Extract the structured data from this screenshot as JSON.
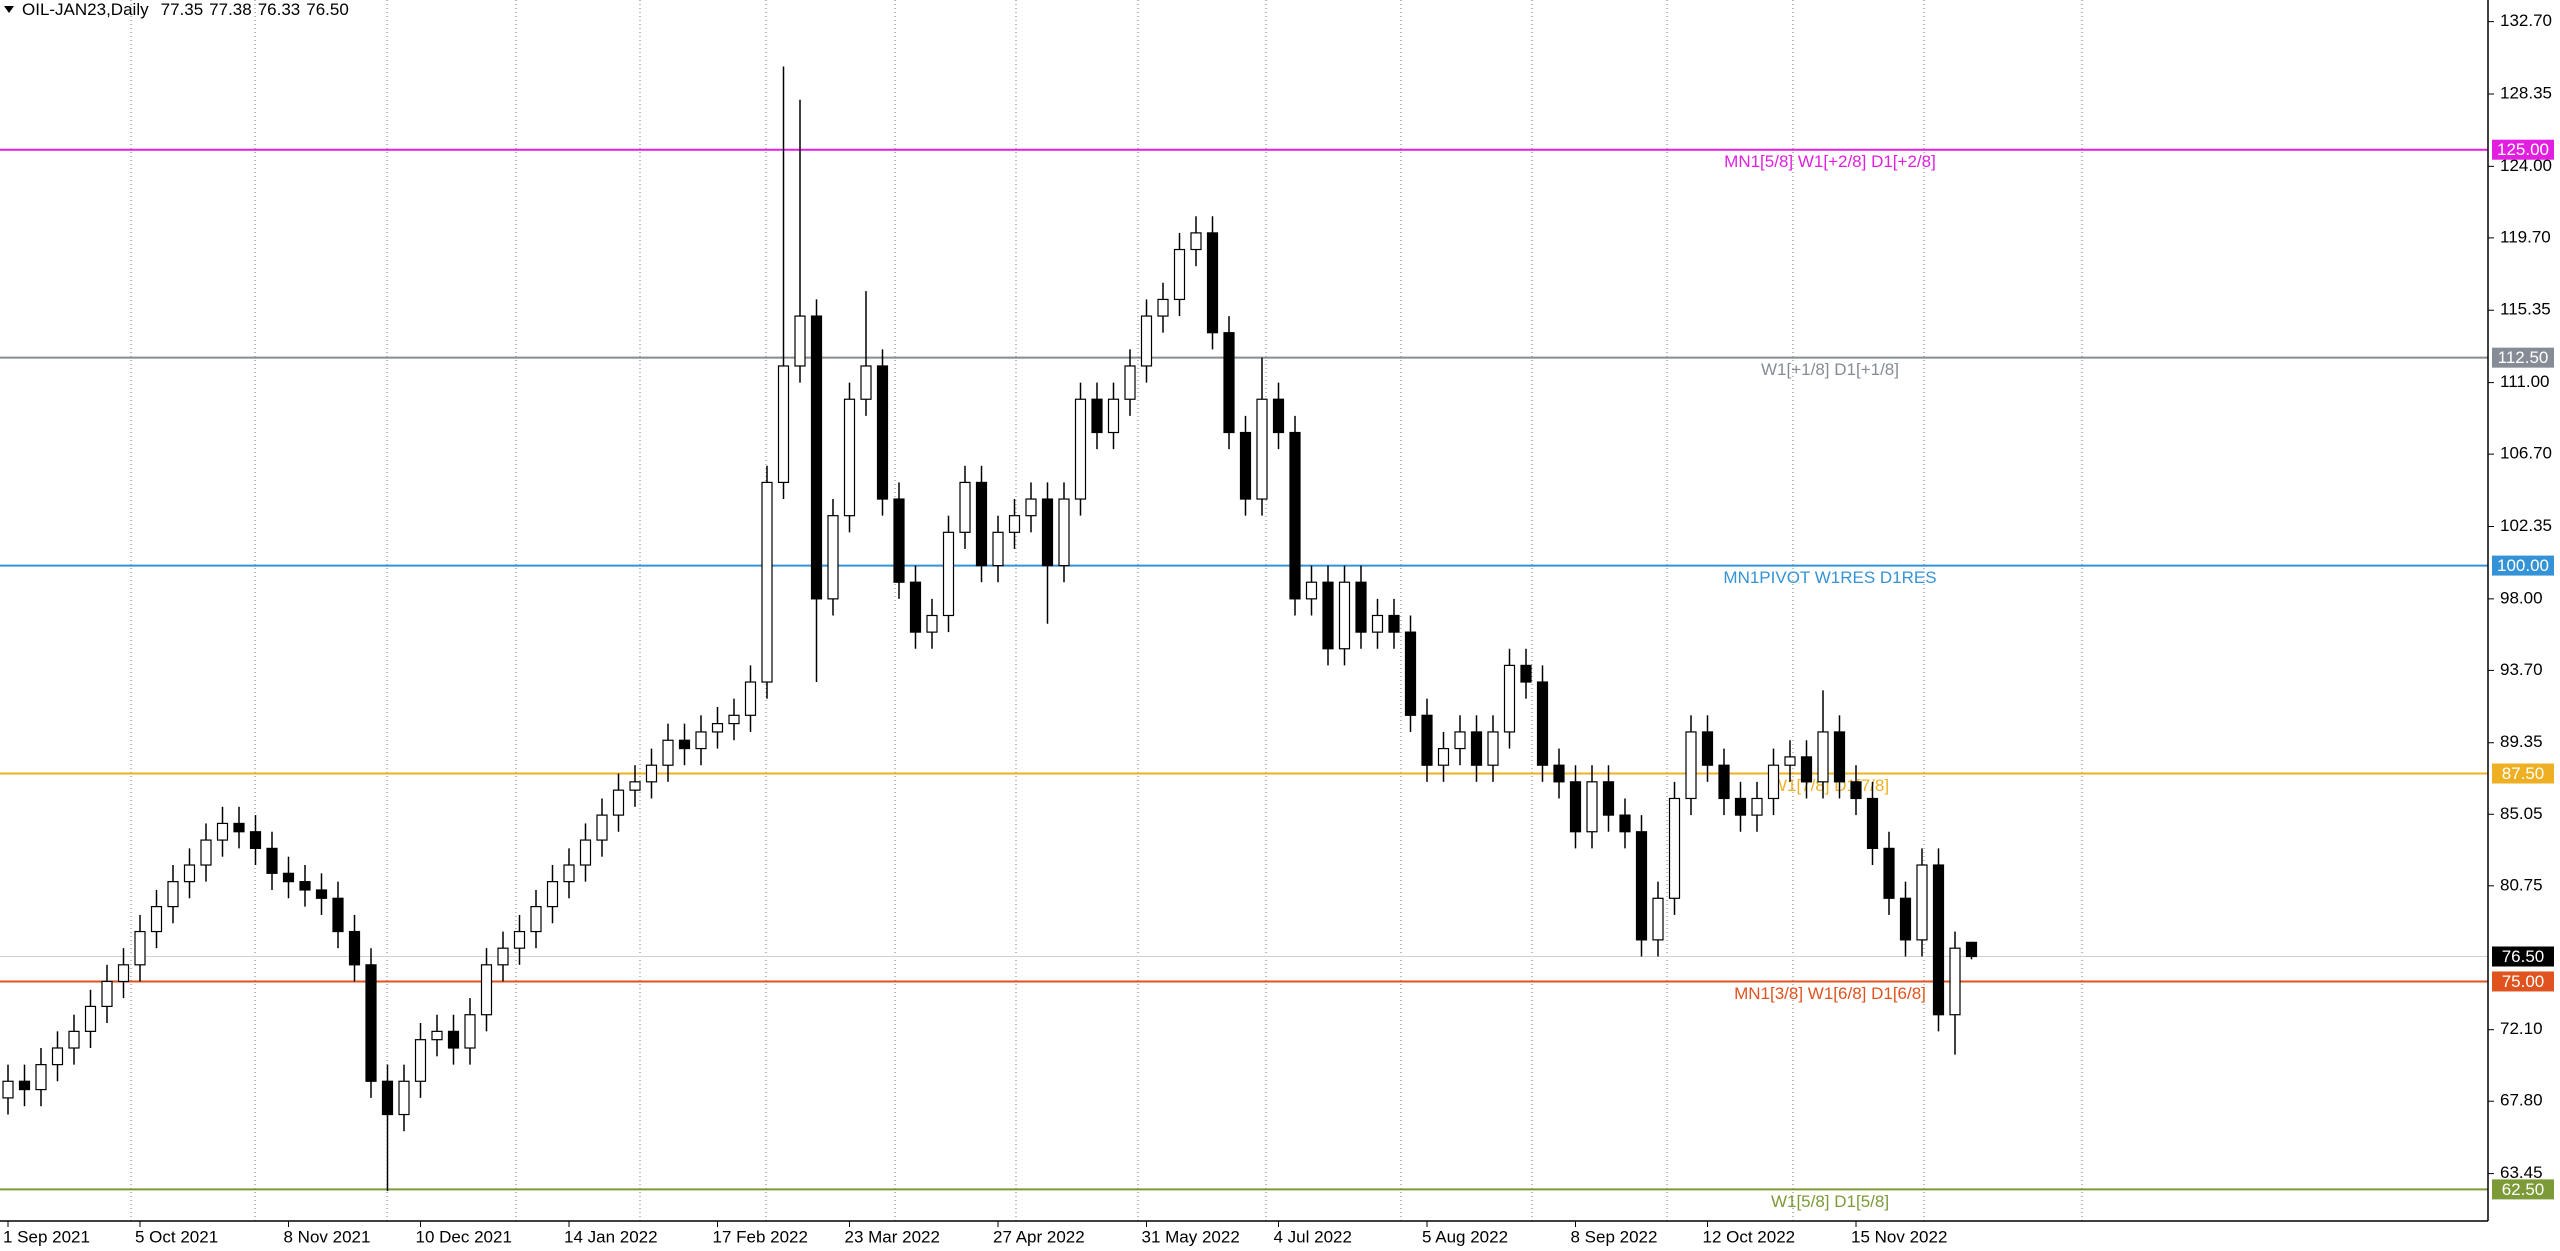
{
  "chart_data": {
    "type": "candlestick",
    "title": "OIL-JAN23,Daily",
    "last_ohlc": [
      77.35,
      77.38,
      76.33,
      {
        "value": 76.5,
        "label": "76.50"
      }
    ],
    "up_color": "#ffffff",
    "down_color": "#000000",
    "outline": "#000000",
    "categories": [
      "1 Sep 2021",
      null,
      null,
      null,
      null,
      null,
      null,
      null,
      "5 Oct 2021",
      null,
      null,
      null,
      null,
      null,
      null,
      null,
      null,
      "8 Nov 2021",
      null,
      null,
      null,
      null,
      null,
      null,
      null,
      "10 Dec 2021",
      null,
      null,
      null,
      null,
      null,
      null,
      null,
      null,
      "14 Jan 2022",
      null,
      null,
      null,
      null,
      null,
      null,
      null,
      null,
      "17 Feb 2022",
      null,
      null,
      null,
      null,
      null,
      null,
      null,
      "23 Mar 2022",
      null,
      null,
      null,
      null,
      null,
      null,
      null,
      null,
      "27 Apr 2022",
      null,
      null,
      null,
      null,
      null,
      null,
      null,
      null,
      "31 May 2022",
      null,
      null,
      null,
      null,
      null,
      null,
      null,
      "4 Jul 2022",
      null,
      null,
      null,
      null,
      null,
      null,
      null,
      null,
      "5 Aug 2022",
      null,
      null,
      null,
      null,
      null,
      null,
      null,
      null,
      "8 Sep 2022",
      null,
      null,
      null,
      null,
      null,
      null,
      null,
      "12 Oct 2022",
      null,
      null,
      null,
      null,
      null,
      null,
      null,
      null,
      "15 Nov 2022",
      null,
      null,
      null,
      null,
      null,
      null,
      null
    ],
    "open": [
      68,
      69,
      68.5,
      70,
      71,
      72,
      73.5,
      75,
      76,
      78,
      79.5,
      81,
      82,
      83.5,
      84.5,
      84,
      83,
      81.5,
      81,
      80.5,
      80,
      78,
      76,
      69,
      67,
      69,
      71.5,
      72,
      71,
      73,
      76,
      77,
      78,
      79.5,
      81,
      82,
      83.5,
      85,
      86.5,
      87,
      88,
      89.5,
      89,
      90,
      90.5,
      91,
      93,
      105,
      112,
      115,
      98,
      103,
      110,
      112,
      104,
      99,
      96,
      97,
      102,
      105,
      100,
      102,
      103,
      104,
      100,
      104,
      110,
      108,
      110,
      112,
      115,
      116,
      119,
      120,
      114,
      108,
      104,
      110,
      108,
      98,
      99,
      95,
      99,
      96,
      97,
      96,
      91,
      88,
      89,
      90,
      88,
      90,
      94,
      93,
      88,
      87,
      84,
      87,
      85,
      84,
      77.5,
      80,
      86,
      90,
      88,
      86,
      85,
      86,
      88,
      88.5,
      87,
      90,
      87,
      86,
      83,
      80,
      77.5,
      82,
      73,
      77.35
    ],
    "high": [
      70,
      70,
      71,
      72,
      73,
      74.5,
      76,
      77,
      79,
      80.5,
      82,
      83,
      84.5,
      85.5,
      85.5,
      85,
      84,
      82.5,
      82,
      81.5,
      81,
      79,
      77,
      70,
      70,
      72.5,
      73,
      73,
      74,
      77,
      78,
      79,
      80.5,
      82,
      83,
      84.5,
      86,
      87.5,
      88,
      89,
      90.5,
      90.5,
      91,
      91.5,
      92,
      94,
      106,
      130,
      128,
      116,
      104,
      111,
      116.5,
      113,
      105,
      100,
      98,
      103,
      106,
      106,
      103,
      104,
      105,
      105,
      105,
      111,
      111,
      111,
      113,
      116,
      117,
      120,
      121,
      121,
      115,
      109,
      112.5,
      111,
      109,
      100,
      100,
      100,
      100,
      98,
      98,
      97,
      92,
      90,
      91,
      91,
      91,
      95,
      95,
      94,
      89,
      88,
      88,
      88,
      86,
      85,
      81,
      87,
      91,
      91,
      89,
      87,
      87,
      89,
      89.5,
      89.5,
      92.5,
      91,
      88,
      87,
      84,
      81,
      83,
      83,
      78,
      77.38
    ],
    "low": [
      67,
      67.5,
      67.5,
      69,
      70,
      71,
      72.5,
      74,
      75,
      77,
      78.5,
      80,
      81,
      82.5,
      83,
      82,
      80.5,
      80,
      79.5,
      79,
      77,
      75,
      68,
      62.4,
      66,
      68,
      70.5,
      70,
      70,
      72,
      75,
      76,
      77,
      78.5,
      80,
      81,
      82.5,
      84,
      85.5,
      86,
      87,
      88,
      88,
      89,
      89.5,
      90,
      92,
      104,
      111,
      93,
      97,
      102,
      109,
      103,
      98,
      95,
      95,
      96,
      101,
      99,
      99,
      101,
      102,
      96.5,
      99,
      103,
      107,
      107,
      109,
      111,
      114,
      115,
      118,
      113,
      107,
      103,
      103,
      107,
      97,
      97,
      94,
      94,
      95,
      95,
      95,
      90,
      87,
      87,
      88,
      87,
      87,
      89,
      92,
      87,
      86,
      83,
      83,
      84,
      83,
      76.5,
      76.5,
      79,
      85,
      87,
      85,
      84,
      84,
      85,
      87,
      86,
      86,
      86,
      85,
      82,
      79,
      76.5,
      76.5,
      72,
      70.6,
      76.33
    ],
    "close": [
      69,
      68.5,
      70,
      71,
      72,
      73.5,
      75,
      76,
      78,
      79.5,
      81,
      82,
      83.5,
      84.5,
      84,
      83,
      81.5,
      81,
      80.5,
      80,
      78,
      76,
      69,
      67,
      69,
      71.5,
      72,
      71,
      73,
      76,
      77,
      78,
      79.5,
      81,
      82,
      83.5,
      85,
      86.5,
      87,
      88,
      89.5,
      89,
      90,
      90.5,
      91,
      93,
      105,
      112,
      115,
      98,
      103,
      110,
      112,
      104,
      99,
      96,
      97,
      102,
      105,
      100,
      102,
      103,
      104,
      100,
      104,
      110,
      108,
      110,
      112,
      115,
      116,
      119,
      120,
      114,
      108,
      104,
      110,
      108,
      98,
      99,
      95,
      99,
      96,
      97,
      96,
      91,
      88,
      89,
      90,
      88,
      90,
      94,
      93,
      88,
      87,
      84,
      87,
      85,
      84,
      77.5,
      80,
      86,
      90,
      88,
      86,
      85,
      86,
      88,
      88.5,
      87,
      90,
      87,
      86,
      83,
      80,
      77.5,
      82,
      73,
      77,
      76.5
    ],
    "ylim": [
      60.6,
      134.0
    ],
    "yticks": [
      {
        "value": 132.7,
        "label": "132.70"
      },
      128.35,
      {
        "value": 124,
        "label": "124.00"
      },
      {
        "value": 119.7,
        "label": "119.70"
      },
      115.35,
      {
        "value": 111,
        "label": "111.00"
      },
      {
        "value": 106.7,
        "label": "106.70"
      },
      102.35,
      {
        "value": 98,
        "label": "98.00"
      },
      {
        "value": 93.7,
        "label": "93.70"
      },
      89.35,
      85.05,
      80.75,
      {
        "value": 72.1,
        "label": "72.10"
      },
      {
        "value": 67.8,
        "label": "67.80"
      },
      63.45
    ],
    "last_price": {
      "value": 76.5,
      "label": "76.50"
    },
    "levels": [
      {
        "value": 125,
        "label": "125.00",
        "text": "MN1[5/8] W1[+2/8] D1[+2/8]",
        "color": "#e21fe0"
      },
      {
        "value": 112.5,
        "label": "112.50",
        "text": "W1[+1/8] D1[+1/8]",
        "color": "#858c96"
      },
      {
        "value": 100,
        "label": "100.00",
        "text": "MN1PIVOT W1RES D1RES",
        "color": "#3493d6"
      },
      {
        "value": 87.5,
        "label": "87.50",
        "text": "W1[7/8] D1[7/8]",
        "color": "#eeb022"
      },
      {
        "value": 75,
        "label": "75.00",
        "text": "MN1[3/8] W1[6/8] D1[6/8]",
        "color": "#e0521e"
      },
      {
        "value": 62.5,
        "label": "62.50",
        "text": "W1[5/8] D1[5/8]",
        "color": "#7c9a38"
      }
    ]
  }
}
